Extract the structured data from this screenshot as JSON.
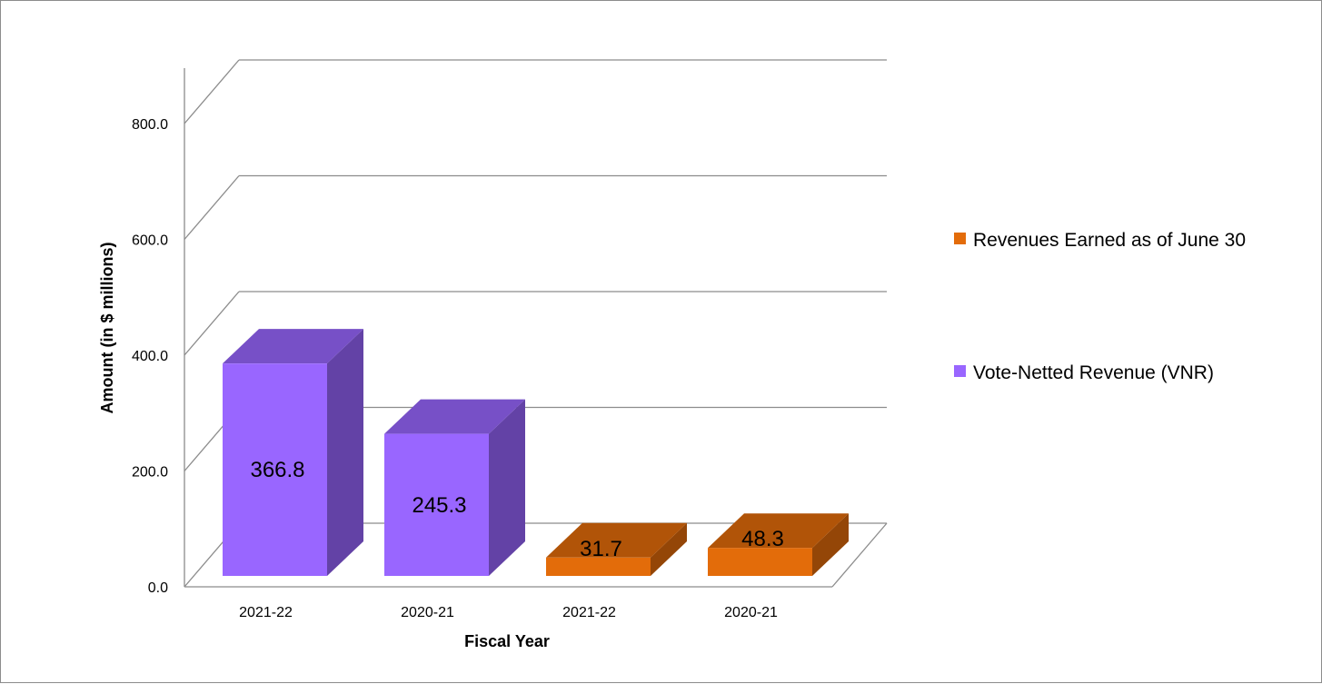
{
  "chart_data": {
    "type": "bar",
    "categories": [
      "2021-22",
      "2020-21",
      "2021-22",
      "2020-21"
    ],
    "series": [
      {
        "name": "Vote-Netted Revenue (VNR)",
        "color": "#9966ff",
        "values": [
          366.8,
          245.3,
          null,
          null
        ],
        "labels": [
          "366.8",
          "245.3",
          "",
          ""
        ]
      },
      {
        "name": "Revenues Earned as of June 30",
        "color": "#e36c0a",
        "values": [
          null,
          null,
          31.7,
          48.3
        ],
        "labels": [
          "",
          "",
          "31.7",
          "48.3"
        ]
      }
    ],
    "legend_order": [
      1,
      0
    ],
    "legend_position": "right",
    "xlabel": "Fiscal Year",
    "ylabel": "Amount (in $ millions)",
    "ylim": [
      0,
      800
    ],
    "yticks": [
      "0.0",
      "200.0",
      "400.0",
      "600.0",
      "800.0"
    ],
    "grid": true,
    "style": "3d-column"
  }
}
